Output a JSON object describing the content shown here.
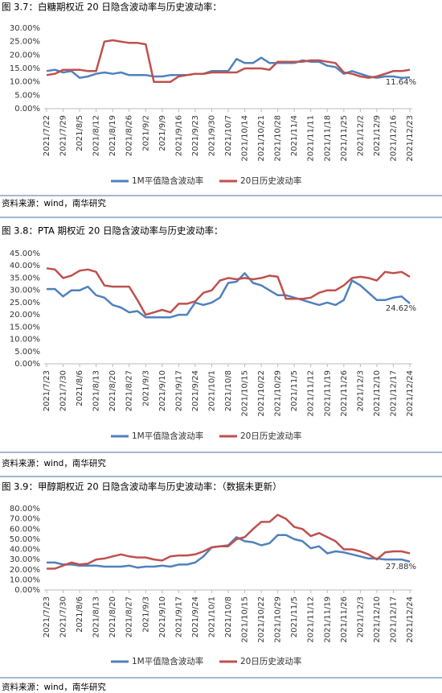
{
  "chart_data": [
    {
      "type": "line",
      "title": "图 3.7：白糖期权近 20 日隐含波动率与历史波动率：",
      "source": "资料来源：wind，南华研究",
      "grid": false,
      "legend": "bottom",
      "categories": [
        "2021/7/22",
        null,
        "2021/7/29",
        null,
        "2021/8/5",
        null,
        "2021/8/12",
        null,
        "2021/8/19",
        null,
        "2021/8/26",
        null,
        "2021/9/2",
        null,
        "2021/9/9",
        null,
        "2021/9/16",
        null,
        "2021/9/23",
        null,
        "2021/9/30",
        null,
        "2021/10/7",
        null,
        "2021/10/14",
        null,
        "2021/10/21",
        null,
        "2021/10/28",
        null,
        "2021/11/4",
        null,
        "2021/11/11",
        null,
        "2021/11/18",
        null,
        "2021/11/25",
        null,
        "2021/12/2",
        null,
        "2021/12/9",
        null,
        "2021/12/16",
        null,
        "2021/12/23"
      ],
      "ylim": [
        0,
        30
      ],
      "yticks": [
        {
          "value": 0,
          "label": "0.00%"
        },
        {
          "value": 5,
          "label": "5.00%"
        },
        {
          "value": 10,
          "label": "10.00%"
        },
        {
          "value": 15,
          "label": "15.00%"
        },
        {
          "value": 20,
          "label": "20.00%"
        },
        {
          "value": 25,
          "label": "25.00%"
        },
        {
          "value": 30,
          "label": "30.00%"
        }
      ],
      "series": [
        {
          "name": "1M平值隐含波动率",
          "color": "#4f81bd",
          "values": [
            14,
            14.5,
            13.5,
            14,
            11.5,
            12,
            13,
            13.5,
            13,
            13.5,
            12.5,
            12.5,
            12.5,
            12,
            12,
            12.5,
            12.5,
            12.5,
            13,
            13,
            14,
            14,
            14,
            18.5,
            17,
            17,
            19,
            17,
            17,
            17,
            17,
            18,
            17.5,
            17.5,
            16,
            15.5,
            13,
            14,
            13,
            12,
            11.5,
            12,
            12,
            11.5,
            11.64
          ],
          "value_labels": [
            null,
            null,
            null,
            null,
            null,
            null,
            null,
            null,
            null,
            null,
            null,
            null,
            null,
            null,
            null,
            null,
            null,
            null,
            null,
            null,
            null,
            null,
            null,
            null,
            null,
            null,
            null,
            null,
            null,
            null,
            null,
            null,
            null,
            null,
            null,
            null,
            null,
            null,
            null,
            null,
            null,
            null,
            null,
            null,
            "11.64%"
          ]
        },
        {
          "name": "20日历史波动率",
          "color": "#c0504d",
          "values": [
            12.5,
            13,
            14.5,
            14.5,
            14.5,
            14,
            14,
            25,
            25.5,
            25,
            24.5,
            24.5,
            24,
            10,
            10,
            10,
            12,
            12.5,
            13,
            13,
            13.5,
            13.5,
            13.5,
            13.5,
            15,
            15,
            15,
            14.5,
            17.5,
            17.5,
            17.5,
            17.5,
            18,
            18,
            17.5,
            17,
            13.5,
            13,
            12,
            11.5,
            12,
            13,
            14,
            14,
            14.5
          ]
        }
      ]
    },
    {
      "type": "line",
      "title": "图 3.8：PTA 期权近 20 日隐含波动率与历史波动率：",
      "source": "资料来源：wind，南华研究",
      "grid": false,
      "legend": "bottom",
      "categories": [
        "2021/7/23",
        null,
        "2021/7/30",
        null,
        "2021/8/6",
        null,
        "2021/8/13",
        null,
        "2021/8/20",
        null,
        "2021/8/27",
        null,
        "2021/9/3",
        null,
        "2021/9/10",
        null,
        "2021/9/17",
        null,
        "2021/9/24",
        null,
        "2021/10/1",
        null,
        "2021/10/8",
        null,
        "2021/10/15",
        null,
        "2021/10/22",
        null,
        "2021/10/29",
        null,
        "2021/11/5",
        null,
        "2021/11/12",
        null,
        "2021/11/19",
        null,
        "2021/11/26",
        null,
        "2021/12/3",
        null,
        "2021/12/10",
        null,
        "2021/12/17",
        null,
        "2021/12/24"
      ],
      "ylim": [
        0,
        45
      ],
      "yticks": [
        {
          "value": 0,
          "label": "0.00%"
        },
        {
          "value": 5,
          "label": "5.00%"
        },
        {
          "value": 10,
          "label": "10.00%"
        },
        {
          "value": 15,
          "label": "15.00%"
        },
        {
          "value": 20,
          "label": "20.00%"
        },
        {
          "value": 25,
          "label": "25.00%"
        },
        {
          "value": 30,
          "label": "30.00%"
        },
        {
          "value": 35,
          "label": "35.00%"
        },
        {
          "value": 40,
          "label": "40.00%"
        },
        {
          "value": 45,
          "label": "45.00%"
        }
      ],
      "series": [
        {
          "name": "1M平值隐含波动率",
          "color": "#4f81bd",
          "values": [
            30.5,
            30.5,
            27.5,
            30,
            30,
            31.5,
            28,
            27,
            24,
            23,
            21,
            21.5,
            19,
            19,
            19,
            19,
            20,
            20,
            25,
            24,
            25,
            27,
            33,
            33.5,
            37,
            33,
            32,
            30,
            28,
            28,
            27,
            26,
            25,
            24,
            25,
            24,
            26,
            34,
            32,
            29,
            26,
            26,
            27,
            27.5,
            24.62
          ],
          "value_labels": [
            null,
            null,
            null,
            null,
            null,
            null,
            null,
            null,
            null,
            null,
            null,
            null,
            null,
            null,
            null,
            null,
            null,
            null,
            null,
            null,
            null,
            null,
            null,
            null,
            null,
            null,
            null,
            null,
            null,
            null,
            null,
            null,
            null,
            null,
            null,
            null,
            null,
            null,
            null,
            null,
            null,
            null,
            null,
            null,
            "24.62%"
          ]
        },
        {
          "name": "20日历史波动率",
          "color": "#c0504d",
          "values": [
            39,
            38.5,
            35,
            36,
            38,
            38.5,
            37.5,
            32,
            31.5,
            31.5,
            31.5,
            26,
            20,
            21,
            22,
            21,
            24.5,
            24.5,
            25.5,
            29,
            30,
            34,
            35,
            34.5,
            35,
            34.5,
            35,
            36,
            35.5,
            26.5,
            26.5,
            26.5,
            27,
            29,
            30,
            30,
            32,
            35,
            35.5,
            35,
            34,
            37.5,
            37,
            37.5,
            35.5
          ]
        }
      ]
    },
    {
      "type": "line",
      "title": "图 3.9：甲醇期权近 20 日隐含波动率与历史波动率：（数据未更新）",
      "source": "资料来源：wind，南华研究",
      "grid": false,
      "legend": "bottom",
      "categories": [
        "2021/7/23",
        null,
        "2021/7/30",
        null,
        "2021/8/6",
        null,
        "2021/8/13",
        null,
        "2021/8/20",
        null,
        "2021/8/27",
        null,
        "2021/9/3",
        null,
        "2021/9/10",
        null,
        "2021/9/17",
        null,
        "2021/9/24",
        null,
        "2021/10/1",
        null,
        "2021/10/8",
        null,
        "2021/10/15",
        null,
        "2021/10/22",
        null,
        "2021/10/29",
        null,
        "2021/11/5",
        null,
        "2021/11/12",
        null,
        "2021/11/19",
        null,
        "2021/11/26",
        null,
        "2021/12/3",
        null,
        "2021/12/10",
        null,
        "2021/12/17",
        null,
        "2021/12/24"
      ],
      "ylim": [
        0,
        80
      ],
      "yticks": [
        {
          "value": 0,
          "label": "0.00%"
        },
        {
          "value": 10,
          "label": "10.00%"
        },
        {
          "value": 20,
          "label": "20.00%"
        },
        {
          "value": 30,
          "label": "30.00%"
        },
        {
          "value": 40,
          "label": "40.00%"
        },
        {
          "value": 50,
          "label": "50.00%"
        },
        {
          "value": 60,
          "label": "60.00%"
        },
        {
          "value": 70,
          "label": "70.00%"
        },
        {
          "value": 80,
          "label": "80.00%"
        }
      ],
      "series": [
        {
          "name": "1M平值隐含波动率",
          "color": "#4f81bd",
          "values": [
            27,
            27,
            25,
            25,
            24,
            24,
            24,
            23,
            23,
            23,
            24,
            22,
            23,
            23,
            24,
            23,
            25,
            25,
            27,
            33,
            42,
            43,
            44,
            52,
            48,
            47,
            44,
            46,
            54,
            54,
            50,
            48,
            41,
            43,
            36,
            38,
            37,
            35,
            33,
            31,
            31,
            30,
            30,
            30,
            27.88
          ],
          "value_labels": [
            null,
            null,
            null,
            null,
            null,
            null,
            null,
            null,
            null,
            null,
            null,
            null,
            null,
            null,
            null,
            null,
            null,
            null,
            null,
            null,
            null,
            null,
            null,
            null,
            null,
            null,
            null,
            null,
            null,
            null,
            null,
            null,
            null,
            null,
            null,
            null,
            null,
            null,
            null,
            null,
            null,
            null,
            null,
            null,
            "27.88%"
          ]
        },
        {
          "name": "20日历史波动率",
          "color": "#c0504d",
          "values": [
            21,
            21,
            24,
            27,
            25,
            26,
            30,
            31,
            33,
            35,
            33,
            32,
            32,
            30,
            29,
            33,
            34,
            34,
            35,
            38,
            42,
            43,
            43,
            50,
            52,
            60,
            67,
            67,
            74,
            70,
            62,
            60,
            53,
            56,
            52,
            48,
            40,
            40,
            38,
            35,
            30,
            37,
            38,
            38,
            36
          ]
        }
      ]
    }
  ]
}
